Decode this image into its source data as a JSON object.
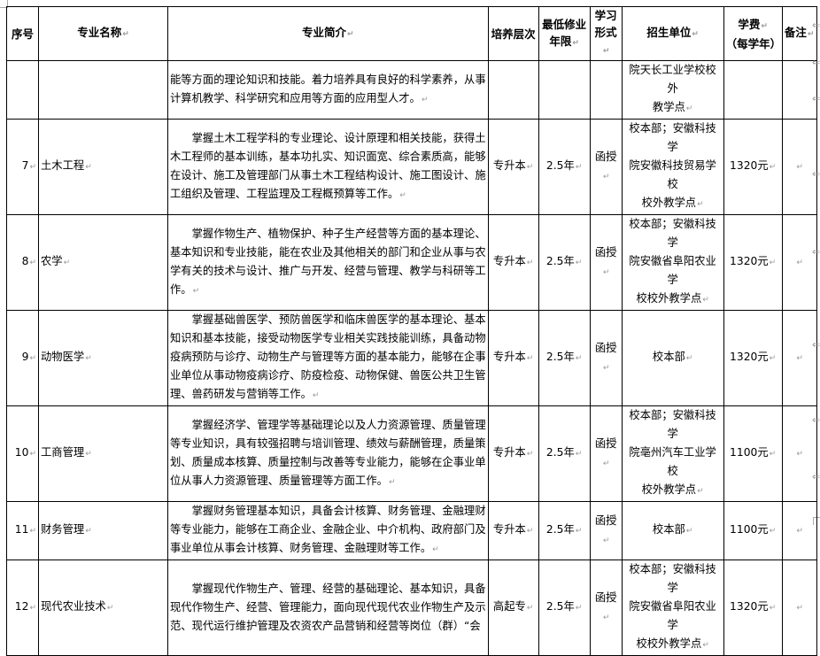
{
  "headers": [
    "序号",
    "专业名称",
    "专业简介",
    "培养层次",
    "最低修业年限",
    "学习形式",
    "招生单位",
    "学费（每学年）",
    "备注"
  ],
  "header_lines": {
    "years": [
      "最低修业",
      "年限"
    ],
    "form": [
      "学习",
      "形式"
    ],
    "fee": [
      "学费",
      "（每学年）"
    ]
  },
  "rows": [
    {
      "no": "",
      "name": "",
      "intro": [
        "能等方面的理论知识和技能。着力培养具有良好的科学素养，从事",
        "计算机教学、科学研究和应用等方面的应用型人才。"
      ],
      "level": "",
      "years": "",
      "form": "",
      "unit": [
        "院天长工业学校校外",
        "教学点"
      ],
      "fee": "",
      "note": ""
    },
    {
      "no": "7",
      "name": "土木工程",
      "intro": [
        "掌握土木工程学科的专业理论、设计原理和相关技能，获得土",
        "木工程师的基本训练，基本功扎实、知识面宽、综合素质高，能够",
        "在设计、施工及管理部门从事土木工程结构设计、施工图设计、施",
        "工组织及管理、工程监理及工程概预算等工作。"
      ],
      "level": "专升本",
      "years": "2.5年",
      "form": "函授",
      "unit": [
        "校本部；安徽科技学",
        "院安徽科技贸易学校",
        "校外教学点"
      ],
      "fee": "1320元",
      "note": ""
    },
    {
      "no": "8",
      "name": "农学",
      "intro": [
        "掌握作物生产、植物保护、种子生产经营等方面的基本理论、",
        "基本知识和专业技能，能在农业及其他相关的部门和企业从事与农",
        "学有关的技术与设计、推广与开发、经营与管理、教学与科研等工",
        "作。"
      ],
      "level": "专升本",
      "years": "2.5年",
      "form": "函授",
      "unit": [
        "校本部；安徽科技学",
        "院安徽省阜阳农业学",
        "校校外教学点"
      ],
      "fee": "1320元",
      "note": ""
    },
    {
      "no": "9",
      "name": "动物医学",
      "intro": [
        "掌握基础兽医学、预防兽医学和临床兽医学的基本理论、基本",
        "知识和基本技能，接受动物医学专业相关实践技能训练，具备动物",
        "疫病预防与诊疗、动物生产与管理等方面的基本能力，能够在企事",
        "业单位从事动物疫病诊疗、防疫检疫、动物保健、兽医公共卫生管",
        "理、兽药研发与营销等工作。"
      ],
      "level": "专升本",
      "years": "2.5年",
      "form": "函授",
      "unit": [
        "校本部"
      ],
      "fee": "1320元",
      "note": ""
    },
    {
      "no": "10",
      "name": "工商管理",
      "intro": [
        "掌握经济学、管理学等基础理论以及人力资源管理、质量管理",
        "等专业知识，具有较强招聘与培训管理、绩效与薪酬管理，质量策",
        "划、质量成本核算、质量控制与改善等专业能力，能够在企事业单",
        "位从事人力资源管理、质量管理等方面工作。"
      ],
      "level": "专升本",
      "years": "2.5年",
      "form": "函授",
      "unit": [
        "校本部；安徽科技学",
        "院亳州汽车工业学校",
        "校外教学点"
      ],
      "fee": "1100元",
      "note": ""
    },
    {
      "no": "11",
      "name": "财务管理",
      "intro": [
        "掌握财务管理基本知识，具备会计核算、财务管理、金融理财",
        "等专业能力，能够在工商企业、金融企业、中介机构、政府部门及",
        "事业单位从事会计核算、财务管理、金融理财等工作。"
      ],
      "level": "专升本",
      "years": "2.5年",
      "form": "函授",
      "unit": [
        "校本部"
      ],
      "fee": "1100元",
      "note": ""
    },
    {
      "no": "12",
      "name": "现代农业技术",
      "intro": [
        "掌握现代作物生产、管理、经营的基础理论、基本知识，具备",
        "现代作物生产、经营、管理能力，面向现代现代农业作物生产及示",
        "范、现代运行维护管理及农资农产品营销和经营等岗位（群）“会"
      ],
      "level": "高起专",
      "years": "2.5年",
      "form": "函授",
      "unit": [
        "校本部；安徽科技学",
        "院安徽省阜阳农业学",
        "校校外教学点"
      ],
      "fee": "1320元",
      "note": ""
    }
  ]
}
